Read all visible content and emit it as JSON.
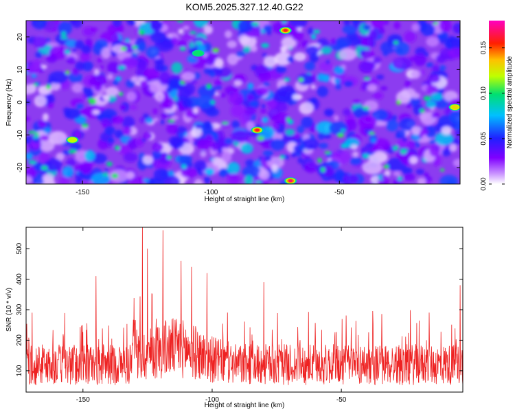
{
  "title": "KOM5.2025.327.12.40.G22",
  "chart_data": [
    {
      "type": "heatmap",
      "xlabel": "Height of straight line (km)",
      "ylabel": "Frequency (Hz)",
      "xlim": [
        -172,
        -3
      ],
      "ylim": [
        -25,
        25
      ],
      "xticks": [
        -150,
        -100,
        -50
      ],
      "yticks": [
        -20,
        -10,
        0,
        10,
        20
      ],
      "colorbar": {
        "label": "Normalized spectral amplitude",
        "range": [
          0,
          0.18
        ],
        "ticks": [
          "0.00",
          "0.05",
          "0.10",
          "0.15"
        ],
        "tick_values": [
          0.0,
          0.05,
          0.1,
          0.15
        ],
        "colormap": "rainbow (white-violet-blue-cyan-green-yellow-orange-red-magenta)"
      },
      "peaks": [
        {
          "x": -69,
          "y": -24,
          "value": 0.17
        },
        {
          "x": -82,
          "y": -8.5,
          "value": 0.16
        },
        {
          "x": -71,
          "y": 22,
          "value": 0.16
        },
        {
          "x": -154,
          "y": -11.5,
          "value": 0.12
        },
        {
          "x": -5,
          "y": -1.5,
          "value": 0.13
        },
        {
          "x": -105,
          "y": 15,
          "value": 0.1
        }
      ]
    },
    {
      "type": "line",
      "xlabel": "Height of straight line (km)",
      "ylabel": "SNR (10 * v/v)",
      "xlim": [
        -172,
        -3
      ],
      "ylim": [
        30,
        570
      ],
      "xticks": [
        -150,
        -100,
        -50
      ],
      "yticks": [
        100,
        200,
        300,
        400,
        500
      ],
      "series_color": "#ee2222",
      "summary": {
        "max": 570,
        "max_at_x": -127,
        "typical_range": [
          50,
          300
        ],
        "notable_peaks": [
          {
            "x": -127,
            "y": 570
          },
          {
            "x": -119,
            "y": 560
          },
          {
            "x": -125,
            "y": 500
          },
          {
            "x": -112,
            "y": 460
          },
          {
            "x": -108,
            "y": 440
          },
          {
            "x": -102,
            "y": 420
          },
          {
            "x": -145,
            "y": 410
          },
          {
            "x": -80,
            "y": 390
          },
          {
            "x": -4,
            "y": 380
          }
        ]
      }
    }
  ]
}
